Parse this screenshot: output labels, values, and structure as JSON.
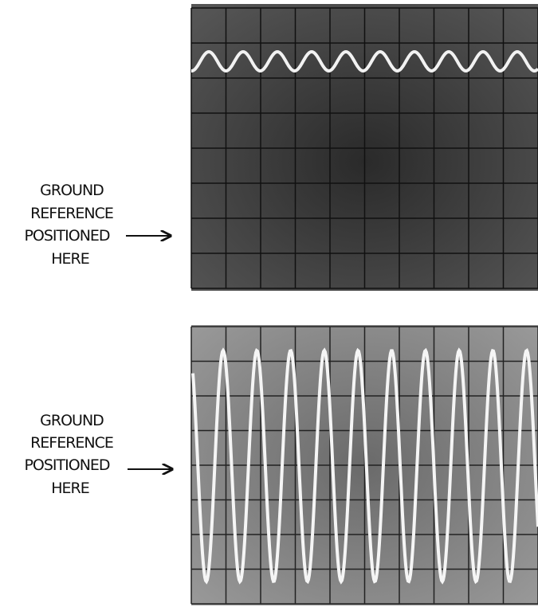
{
  "panels": [
    {
      "label_lines": [
        "GROUND",
        "REFERENCE",
        "POSITIONED",
        "HERE"
      ]
    },
    {
      "label_lines": [
        "GROUND",
        "REFERENCE",
        "POSITIONED",
        "HERE"
      ]
    }
  ]
}
